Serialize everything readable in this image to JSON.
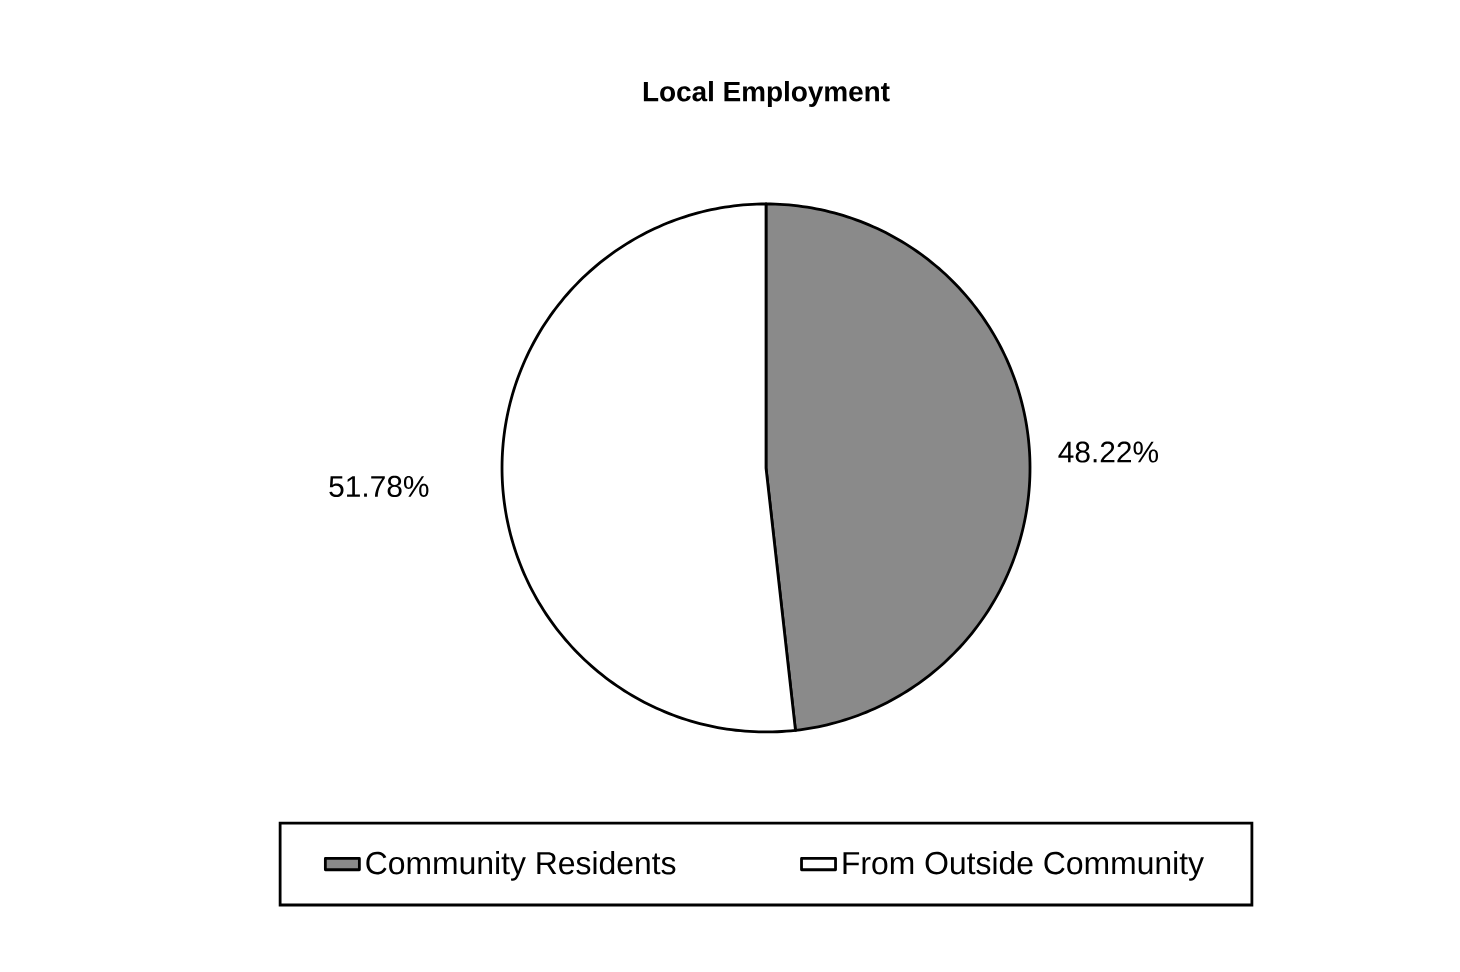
{
  "chart_data": {
    "type": "pie",
    "title": "Local Employment",
    "categories": [
      "Community Residents",
      "From Outside Community"
    ],
    "values": [
      48.22,
      51.78
    ],
    "value_labels": [
      "48.22%",
      "51.78%"
    ],
    "colors": [
      "#8a8a8a",
      "#ffffff"
    ],
    "legend": "bottom"
  }
}
